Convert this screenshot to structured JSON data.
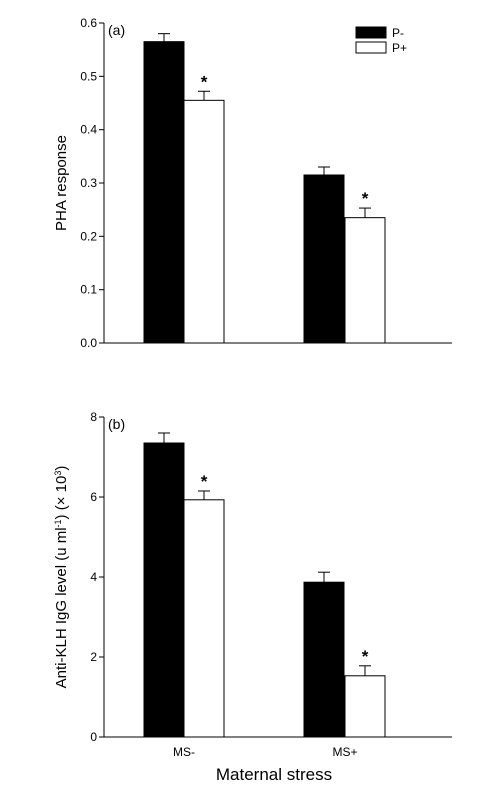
{
  "chart_data": [
    {
      "type": "bar",
      "panel_label": "(a)",
      "categories": [
        "MS-",
        "MS+"
      ],
      "series": [
        {
          "name": "P-",
          "values": [
            0.565,
            0.315
          ],
          "errors": [
            0.015,
            0.015
          ],
          "color": "#000000"
        },
        {
          "name": "P+",
          "values": [
            0.455,
            0.235
          ],
          "errors": [
            0.017,
            0.018
          ],
          "color": "#ffffff"
        }
      ],
      "significance": [
        {
          "series": "P+",
          "category": "MS-",
          "mark": "*"
        },
        {
          "series": "P+",
          "category": "MS+",
          "mark": "*"
        }
      ],
      "ylabel": "PHA response",
      "ylim": [
        0,
        0.6
      ],
      "yticks": [
        "0.0",
        "0.1",
        "0.2",
        "0.3",
        "0.4",
        "0.5",
        "0.6"
      ],
      "show_xtick_labels": false,
      "legend": {
        "position": "top-right",
        "entries": [
          "P-",
          "P+"
        ]
      },
      "grid": false
    },
    {
      "type": "bar",
      "panel_label": "(b)",
      "categories": [
        "MS-",
        "MS+"
      ],
      "series": [
        {
          "name": "P-",
          "values": [
            7.35,
            3.87
          ],
          "errors": [
            0.25,
            0.25
          ],
          "color": "#000000"
        },
        {
          "name": "P+",
          "values": [
            5.93,
            1.53
          ],
          "errors": [
            0.22,
            0.25
          ],
          "color": "#ffffff"
        }
      ],
      "significance": [
        {
          "series": "P+",
          "category": "MS-",
          "mark": "*"
        },
        {
          "series": "P+",
          "category": "MS+",
          "mark": "*"
        }
      ],
      "ylabel_parts": [
        "Anti-KLH IgG level (u ml",
        "-1",
        ") (× 10",
        "3",
        ")"
      ],
      "ylim": [
        0,
        8
      ],
      "yticks": [
        "0",
        "2",
        "4",
        "6",
        "8"
      ],
      "show_xtick_labels": true,
      "grid": false
    }
  ],
  "xlabel": "Maternal stress"
}
